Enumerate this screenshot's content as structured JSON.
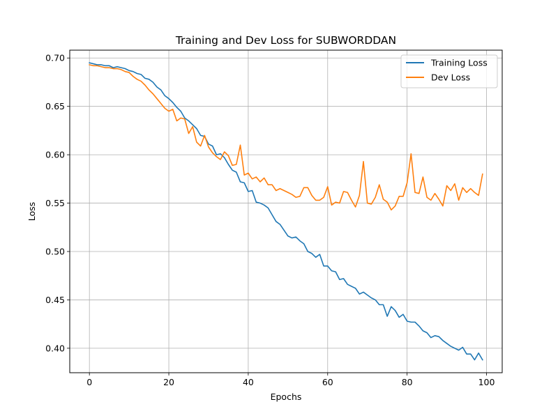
{
  "chart_data": {
    "type": "line",
    "title": "Training and Dev Loss for SUBWORDDAN",
    "xlabel": "Epochs",
    "ylabel": "Loss",
    "xlim": [
      -4.95,
      103.95
    ],
    "ylim": [
      0.3747,
      0.7081
    ],
    "x_ticks": [
      0,
      20,
      40,
      60,
      80,
      100
    ],
    "y_ticks": [
      0.4,
      0.45,
      0.5,
      0.55,
      0.6,
      0.65,
      0.7
    ],
    "x_tick_labels": [
      "0",
      "20",
      "40",
      "60",
      "80",
      "100"
    ],
    "y_tick_labels": [
      "0.40",
      "0.45",
      "0.50",
      "0.55",
      "0.60",
      "0.65",
      "0.70"
    ],
    "grid": true,
    "legend_position": "top-right",
    "x": [
      0,
      1,
      2,
      3,
      4,
      5,
      6,
      7,
      8,
      9,
      10,
      11,
      12,
      13,
      14,
      15,
      16,
      17,
      18,
      19,
      20,
      21,
      22,
      23,
      24,
      25,
      26,
      27,
      28,
      29,
      30,
      31,
      32,
      33,
      34,
      35,
      36,
      37,
      38,
      39,
      40,
      41,
      42,
      43,
      44,
      45,
      46,
      47,
      48,
      49,
      50,
      51,
      52,
      53,
      54,
      55,
      56,
      57,
      58,
      59,
      60,
      61,
      62,
      63,
      64,
      65,
      66,
      67,
      68,
      69,
      70,
      71,
      72,
      73,
      74,
      75,
      76,
      77,
      78,
      79,
      80,
      81,
      82,
      83,
      84,
      85,
      86,
      87,
      88,
      89,
      90,
      91,
      92,
      93,
      94,
      95,
      96,
      97,
      98,
      99
    ],
    "series": [
      {
        "name": "Training Loss",
        "color": "#1f77b4",
        "values": [
          0.695,
          0.694,
          0.693,
          0.693,
          0.692,
          0.692,
          0.69,
          0.691,
          0.69,
          0.689,
          0.687,
          0.686,
          0.684,
          0.683,
          0.679,
          0.678,
          0.675,
          0.67,
          0.667,
          0.661,
          0.658,
          0.654,
          0.649,
          0.645,
          0.638,
          0.635,
          0.631,
          0.627,
          0.62,
          0.619,
          0.611,
          0.609,
          0.6,
          0.601,
          0.597,
          0.59,
          0.584,
          0.582,
          0.572,
          0.571,
          0.562,
          0.563,
          0.551,
          0.55,
          0.548,
          0.545,
          0.538,
          0.531,
          0.528,
          0.522,
          0.516,
          0.514,
          0.515,
          0.511,
          0.508,
          0.5,
          0.498,
          0.494,
          0.497,
          0.485,
          0.485,
          0.48,
          0.479,
          0.471,
          0.472,
          0.466,
          0.464,
          0.462,
          0.456,
          0.458,
          0.455,
          0.452,
          0.45,
          0.445,
          0.445,
          0.433,
          0.443,
          0.439,
          0.432,
          0.435,
          0.428,
          0.427,
          0.427,
          0.423,
          0.418,
          0.416,
          0.411,
          0.413,
          0.412,
          0.408,
          0.405,
          0.402,
          0.4,
          0.398,
          0.401,
          0.394,
          0.394,
          0.388,
          0.395,
          0.388
        ]
      },
      {
        "name": "Dev Loss",
        "color": "#ff7f0e",
        "values": [
          0.693,
          0.692,
          0.692,
          0.691,
          0.69,
          0.69,
          0.689,
          0.689,
          0.688,
          0.686,
          0.685,
          0.681,
          0.678,
          0.676,
          0.672,
          0.667,
          0.663,
          0.658,
          0.653,
          0.648,
          0.645,
          0.647,
          0.635,
          0.638,
          0.637,
          0.622,
          0.629,
          0.613,
          0.609,
          0.62,
          0.608,
          0.602,
          0.598,
          0.595,
          0.603,
          0.599,
          0.589,
          0.59,
          0.61,
          0.579,
          0.581,
          0.575,
          0.577,
          0.572,
          0.576,
          0.569,
          0.569,
          0.563,
          0.565,
          0.563,
          0.561,
          0.559,
          0.556,
          0.557,
          0.566,
          0.566,
          0.558,
          0.553,
          0.553,
          0.556,
          0.567,
          0.548,
          0.551,
          0.55,
          0.562,
          0.561,
          0.553,
          0.546,
          0.558,
          0.593,
          0.55,
          0.549,
          0.556,
          0.569,
          0.554,
          0.551,
          0.543,
          0.547,
          0.557,
          0.557,
          0.571,
          0.601,
          0.561,
          0.56,
          0.577,
          0.556,
          0.553,
          0.56,
          0.554,
          0.547,
          0.568,
          0.563,
          0.57,
          0.553,
          0.566,
          0.561,
          0.565,
          0.561,
          0.558,
          0.58
        ]
      }
    ]
  }
}
